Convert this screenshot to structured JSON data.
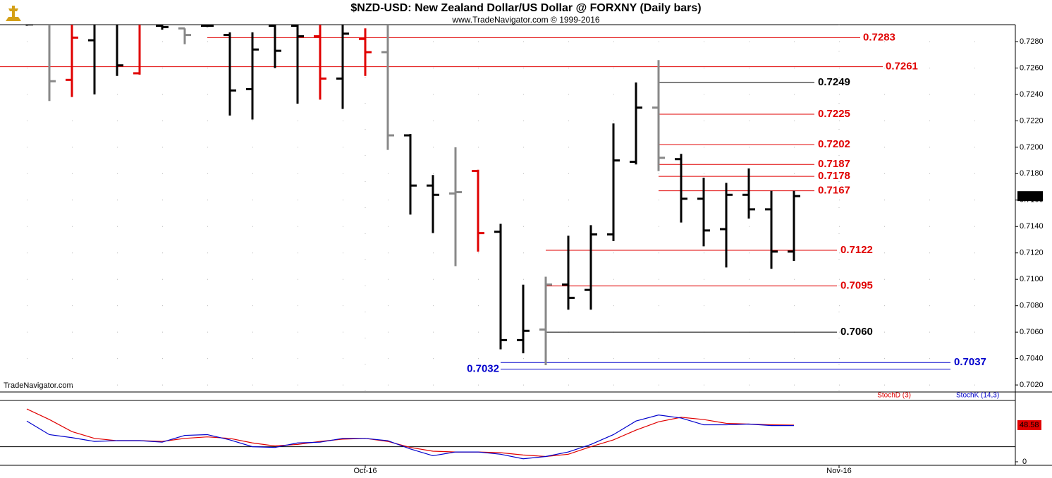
{
  "chart_data": {
    "type": "ohlc",
    "title": "$NZD-USD:  New Zealand Dollar/US Dollar @ FORXNY  (Daily bars)",
    "subtitle": "www.TradeNavigator.com © 1999-2016",
    "watermark": "TradeNavigator.com",
    "ylim": [
      0.70147,
      0.72928
    ],
    "yticks": [
      {
        "value": 0.702,
        "label": "0.7020"
      },
      {
        "value": 0.704,
        "label": "0.7040"
      },
      {
        "value": 0.706,
        "label": "0.7060"
      },
      {
        "value": 0.708,
        "label": "0.7080"
      },
      {
        "value": 0.71,
        "label": "0.7100"
      },
      {
        "value": 0.712,
        "label": "0.7120"
      },
      {
        "value": 0.714,
        "label": "0.7140"
      },
      {
        "value": 0.716,
        "label": "0.7160"
      },
      {
        "value": 0.718,
        "label": "0.7180"
      },
      {
        "value": 0.72,
        "label": "0.7200"
      },
      {
        "value": 0.722,
        "label": "0.7220"
      },
      {
        "value": 0.724,
        "label": "0.7240"
      },
      {
        "value": 0.726,
        "label": "0.7260"
      },
      {
        "value": 0.728,
        "label": "0.7280"
      }
    ],
    "xticks": [
      {
        "value": 15,
        "label": "Oct-16"
      },
      {
        "value": 36,
        "label": "Nov-16"
      }
    ],
    "grid": true,
    "opens": [
      0.7296,
      0.73,
      0.7251,
      0.7281,
      0.73,
      0.7256,
      0.7292,
      0.729,
      0.7292,
      0.7285,
      0.7244,
      0.7292,
      0.7292,
      0.7284,
      0.7252,
      0.7282,
      0.7272,
      0.7209,
      0.7171,
      0.7165,
      0.7182,
      0.7136,
      0.7054,
      0.7062,
      0.7096,
      0.7092,
      0.7134,
      0.7189,
      0.723,
      0.7191,
      0.7161,
      0.7138,
      0.7164,
      0.7153,
      0.7121
    ],
    "highs": [
      0.73,
      0.73,
      0.73,
      0.73,
      0.73,
      0.73,
      0.7293,
      0.729,
      0.7293,
      0.7287,
      0.7287,
      0.73,
      0.73,
      0.73,
      0.73,
      0.729,
      0.73,
      0.721,
      0.7179,
      0.72,
      0.7183,
      0.7142,
      0.7096,
      0.7102,
      0.7133,
      0.7141,
      0.7218,
      0.7249,
      0.7266,
      0.7195,
      0.7177,
      0.7173,
      0.7184,
      0.7167,
      0.7167
    ],
    "lows": [
      0.7292,
      0.7235,
      0.7238,
      0.724,
      0.7254,
      0.7255,
      0.7289,
      0.7278,
      0.7291,
      0.7224,
      0.7221,
      0.726,
      0.7233,
      0.7236,
      0.7229,
      0.7254,
      0.7198,
      0.7149,
      0.7135,
      0.711,
      0.7121,
      0.7047,
      0.7044,
      0.7035,
      0.7077,
      0.7077,
      0.7129,
      0.7187,
      0.7182,
      0.7143,
      0.7125,
      0.7109,
      0.7146,
      0.7108,
      0.7114
    ],
    "closes": [
      0.7293,
      0.725,
      0.7283,
      0.7295,
      0.7262,
      0.73,
      0.7291,
      0.7285,
      0.7292,
      0.7243,
      0.7274,
      0.7273,
      0.7284,
      0.7252,
      0.7286,
      0.7272,
      0.7209,
      0.7171,
      0.7164,
      0.7166,
      0.7135,
      0.7054,
      0.7061,
      0.7096,
      0.7086,
      0.7134,
      0.719,
      0.723,
      0.7192,
      0.7161,
      0.7137,
      0.7164,
      0.7153,
      0.7121,
      0.7163
    ],
    "bar_colors": [
      "#000",
      "#888",
      "#e00000",
      "#000",
      "#000",
      "#e00000",
      "#000",
      "#888",
      "#000",
      "#000",
      "#000",
      "#000",
      "#000",
      "#e00000",
      "#000",
      "#e00000",
      "#888",
      "#000",
      "#000",
      "#888",
      "#e00000",
      "#000",
      "#000",
      "#888",
      "#000",
      "#000",
      "#000",
      "#000",
      "#888",
      "#000",
      "#000",
      "#000",
      "#000",
      "#000",
      "#000"
    ],
    "levels": [
      {
        "value": 0.7283,
        "label": "0.7283",
        "color": "#e00000"
      },
      {
        "value": 0.7261,
        "label": "0.7261",
        "color": "#e00000"
      },
      {
        "value": 0.7249,
        "label": "0.7249",
        "color": "#000000"
      },
      {
        "value": 0.7225,
        "label": "0.7225",
        "color": "#e00000"
      },
      {
        "value": 0.7202,
        "label": "0.7202",
        "color": "#e00000"
      },
      {
        "value": 0.7187,
        "label": "0.7187",
        "color": "#e00000"
      },
      {
        "value": 0.7178,
        "label": "0.7178",
        "color": "#e00000"
      },
      {
        "value": 0.7167,
        "label": "0.7167",
        "color": "#e00000"
      },
      {
        "value": 0.7122,
        "label": "0.7122",
        "color": "#e00000"
      },
      {
        "value": 0.7095,
        "label": "0.7095",
        "color": "#e00000"
      },
      {
        "value": 0.706,
        "label": "0.7060",
        "color": "#000000"
      },
      {
        "value": 0.7037,
        "label": "0.7037",
        "color": "#0000cc"
      },
      {
        "value": 0.7032,
        "label": "0.7032",
        "color": "#0000cc"
      }
    ],
    "y2lim": [
      0,
      81.3
    ],
    "y2ticks": [
      0
    ],
    "y2_level": 20,
    "series": [
      {
        "name": "StochD (3)",
        "color": "#e00000",
        "axis": "y2",
        "values": [
          70,
          56,
          40,
          31,
          28,
          28,
          27,
          31,
          33,
          31,
          25,
          21,
          23,
          27,
          30,
          31,
          27,
          19,
          14,
          13,
          13,
          12,
          9,
          7,
          10,
          20,
          29,
          42,
          53,
          59,
          56,
          51,
          50,
          49,
          48.58
        ]
      },
      {
        "name": "StochK (14,3)",
        "color": "#0000cc",
        "axis": "y2",
        "values": [
          54,
          36,
          32,
          27,
          28,
          28,
          26,
          35,
          36,
          29,
          20,
          19,
          25,
          26,
          31,
          31,
          28,
          17,
          8,
          13,
          13,
          10,
          4,
          7,
          13,
          23,
          36,
          54,
          62,
          58,
          49,
          49,
          50,
          48,
          48
        ]
      }
    ]
  }
}
